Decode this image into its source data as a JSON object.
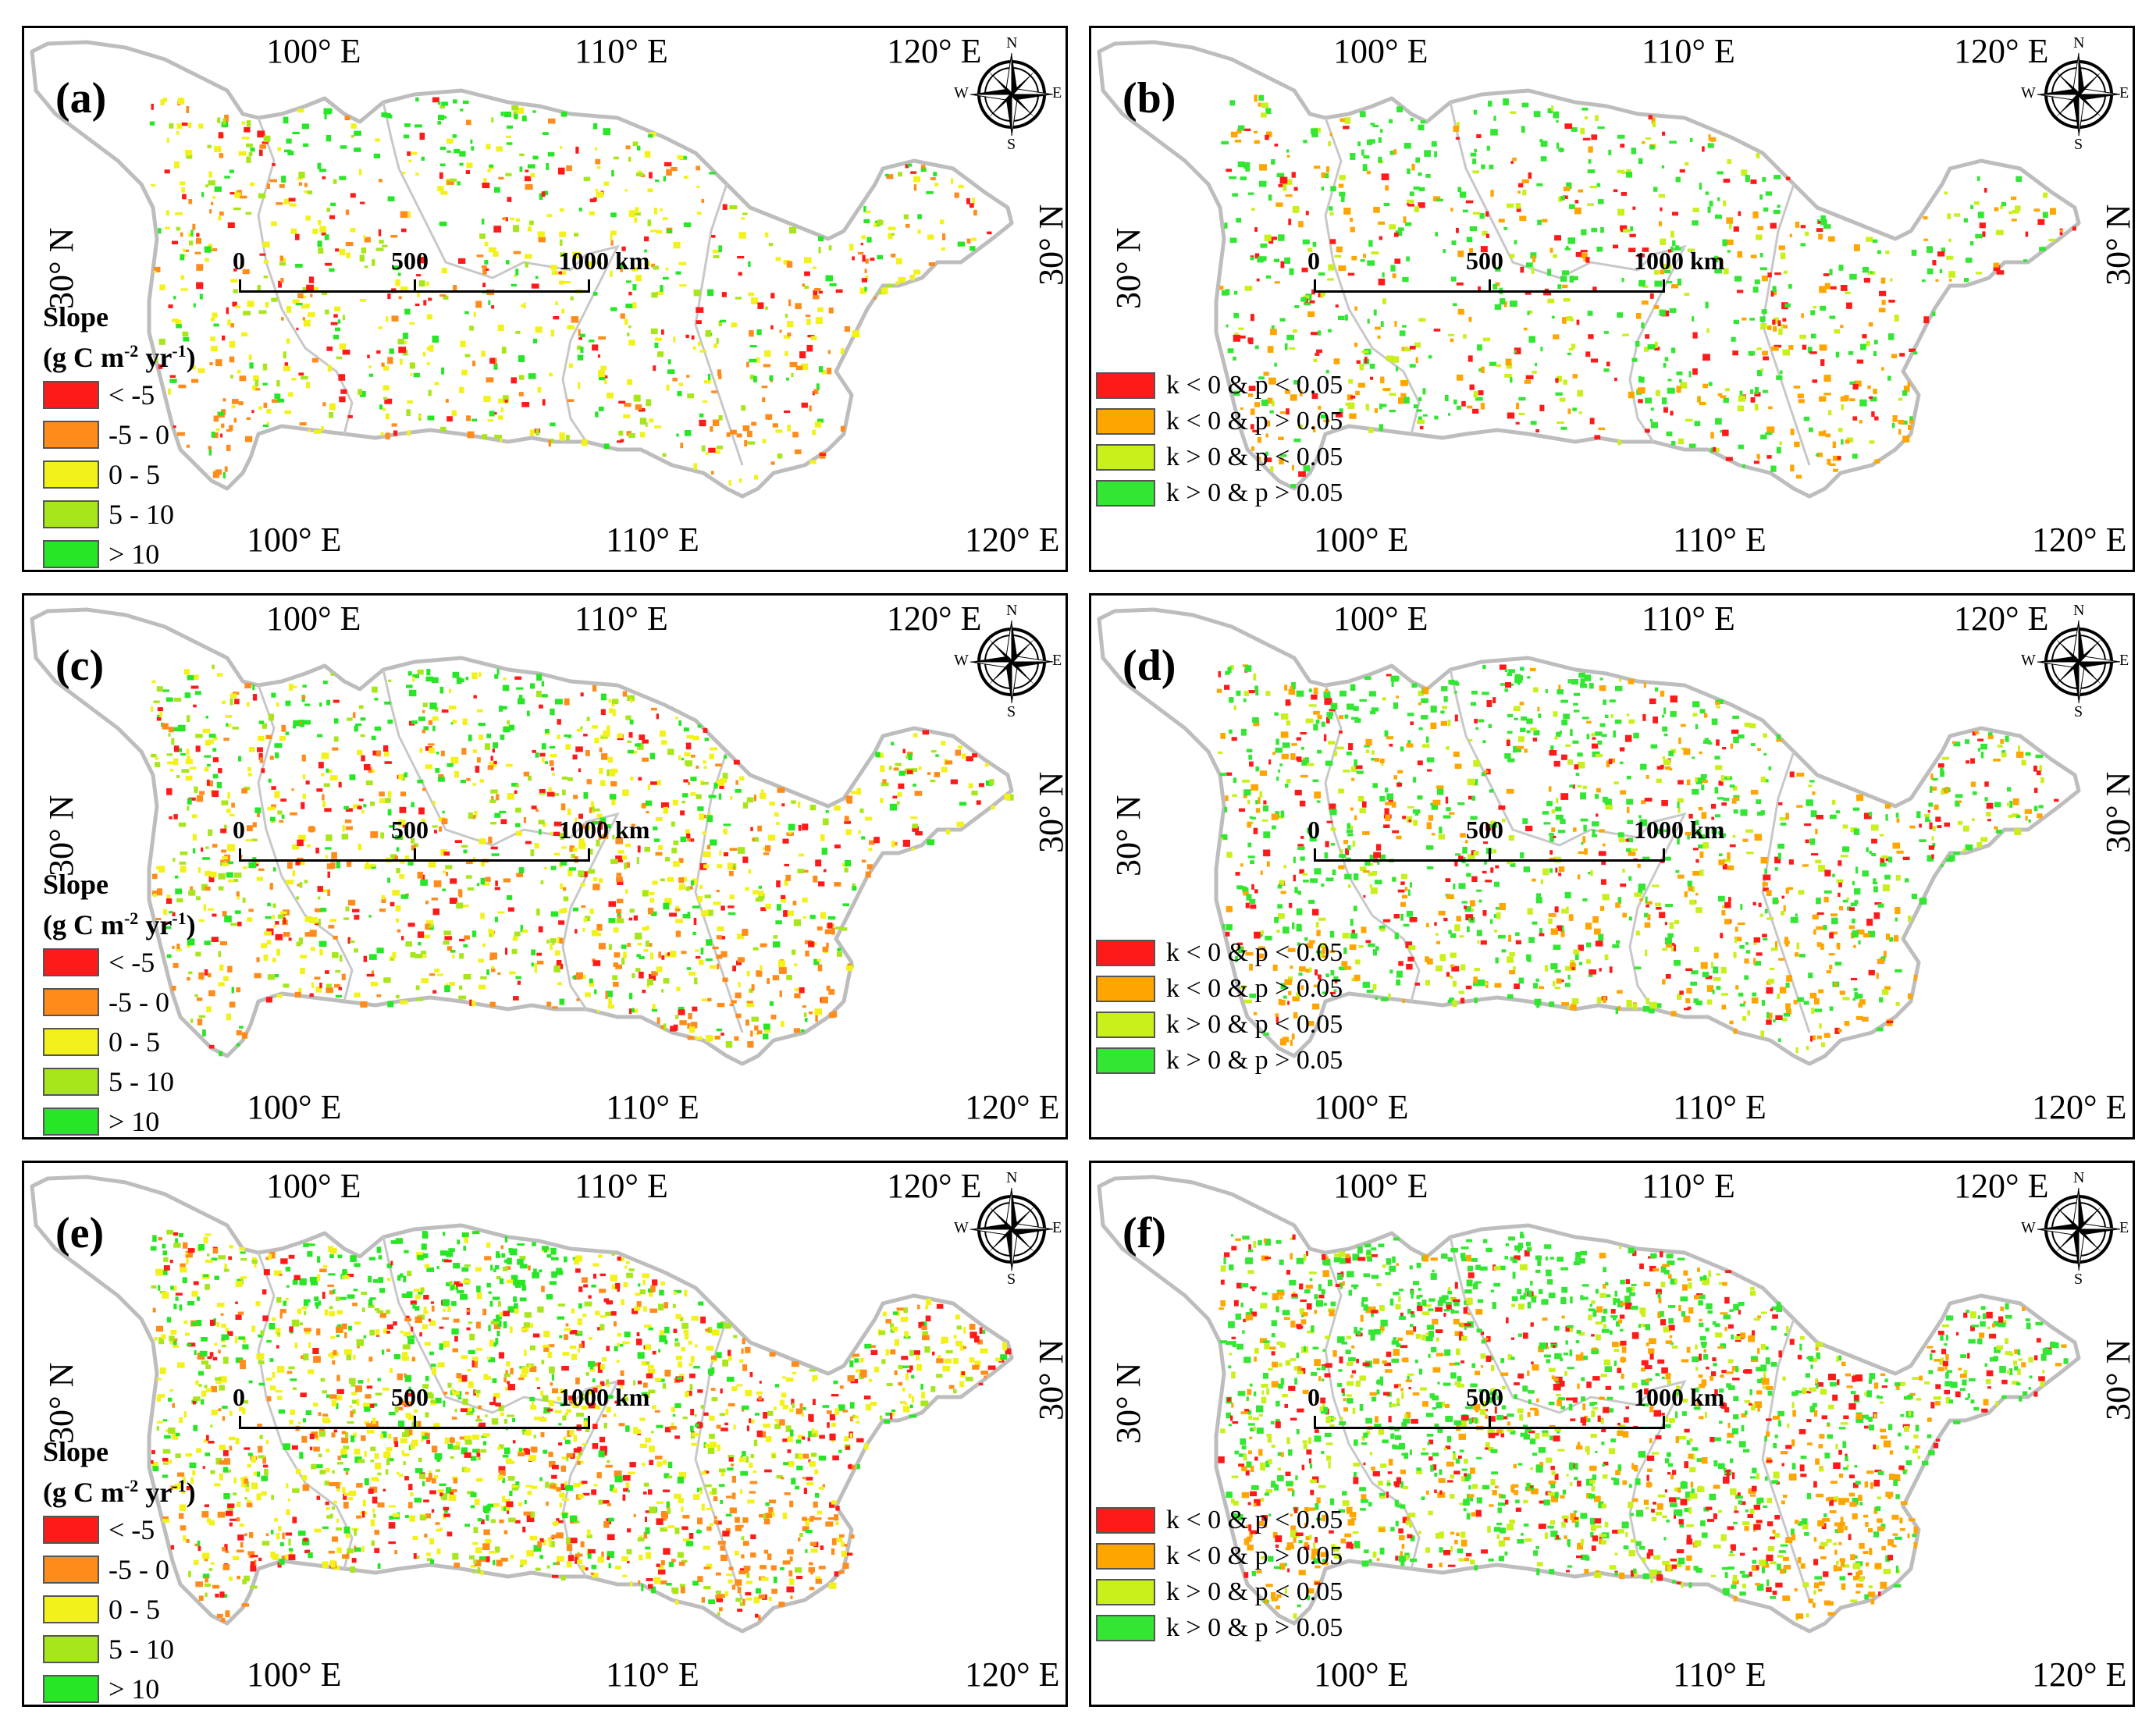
{
  "colors": {
    "lt_m5": "#ff1a1a",
    "m5_0": "#ff8c1a",
    "p0_5": "#f2f21a",
    "p5_10": "#a6e61a",
    "gt10": "#26e626",
    "sig_neg_sig": "#ff1a1a",
    "sig_neg_ns": "#ffa500",
    "sig_pos_sig": "#c8f01a",
    "sig_pos_ns": "#33e633",
    "boundary": "#bdbdbd"
  },
  "coords": {
    "top_lon": [
      "100° E",
      "110° E",
      "120° E"
    ],
    "bottom_lon": [
      "100° E",
      "110° E",
      "120° E"
    ],
    "lat": "30° N"
  },
  "compass": {
    "n": "N",
    "s": "S",
    "e": "E",
    "w": "W"
  },
  "scale": {
    "zero": "0",
    "mid": "500",
    "end": "1000 km"
  },
  "slope_legend": {
    "title_line1": "Slope",
    "title_base": "(g C m",
    "title_exp1": "-2",
    "title_mid": " yr",
    "title_exp2": "-1",
    "title_end": ")",
    "items": [
      "< -5",
      "-5 - 0",
      "0 - 5",
      "5 - 10",
      "> 10"
    ]
  },
  "sig_legend": {
    "items": [
      "k < 0 & p < 0.05",
      "k < 0 & p > 0.05",
      "k > 0 & p < 0.05",
      "k > 0 & p > 0.05"
    ]
  },
  "panels": [
    {
      "label": "(a)",
      "type": "slope",
      "density": 0.55
    },
    {
      "label": "(b)",
      "type": "sig",
      "density": 0.55
    },
    {
      "label": "(c)",
      "type": "slope",
      "density": 0.8
    },
    {
      "label": "(d)",
      "type": "sig",
      "density": 0.8
    },
    {
      "label": "(e)",
      "type": "slope",
      "density": 1.15
    },
    {
      "label": "(f)",
      "type": "sig",
      "density": 1.15
    }
  ]
}
